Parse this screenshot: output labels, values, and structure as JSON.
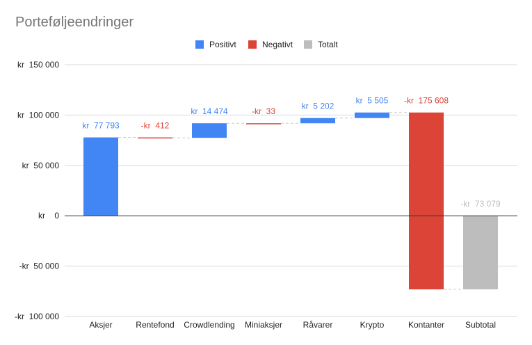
{
  "chart_data": {
    "type": "waterfall",
    "title": "Porteføljeendringer",
    "legend": {
      "placement": "top",
      "items": [
        {
          "key": "positive",
          "label": "Positivt",
          "color": "#4285f4"
        },
        {
          "key": "negative",
          "label": "Negativt",
          "color": "#db4437"
        },
        {
          "key": "total",
          "label": "Totalt",
          "color": "#bdbdbd"
        }
      ]
    },
    "ylim": [
      -100000,
      150000
    ],
    "yticks": [
      {
        "value": 150000,
        "label": "kr  150 000"
      },
      {
        "value": 100000,
        "label": "kr  100 000"
      },
      {
        "value": 50000,
        "label": "kr  50 000"
      },
      {
        "value": 0,
        "label": "kr    0"
      },
      {
        "value": -50000,
        "label": "-kr  50 000"
      },
      {
        "value": -100000,
        "label": "-kr  100 000"
      }
    ],
    "grid": true,
    "categories": [
      "Aksjer",
      "Rentefond",
      "Crowdlending",
      "Miniaksjer",
      "Råvarer",
      "Krypto",
      "Kontanter",
      "Subtotal"
    ],
    "steps": [
      {
        "category": "Aksjer",
        "value": 77793,
        "kind": "positive",
        "label": "kr  77 793"
      },
      {
        "category": "Rentefond",
        "value": -412,
        "kind": "negative",
        "label": "-kr  412"
      },
      {
        "category": "Crowdlending",
        "value": 14474,
        "kind": "positive",
        "label": "kr  14 474"
      },
      {
        "category": "Miniaksjer",
        "value": -33,
        "kind": "negative",
        "label": "-kr  33"
      },
      {
        "category": "Råvarer",
        "value": 5202,
        "kind": "positive",
        "label": "kr  5 202"
      },
      {
        "category": "Krypto",
        "value": 5505,
        "kind": "positive",
        "label": "kr  5 505"
      },
      {
        "category": "Kontanter",
        "value": -175608,
        "kind": "negative",
        "label": "-kr  175 608"
      },
      {
        "category": "Subtotal",
        "value": -73079,
        "kind": "total",
        "label": "-kr  73 079"
      }
    ],
    "colors": {
      "connector": "#cccccc",
      "grid": "#d9d9d9",
      "axis": "#333333"
    }
  }
}
